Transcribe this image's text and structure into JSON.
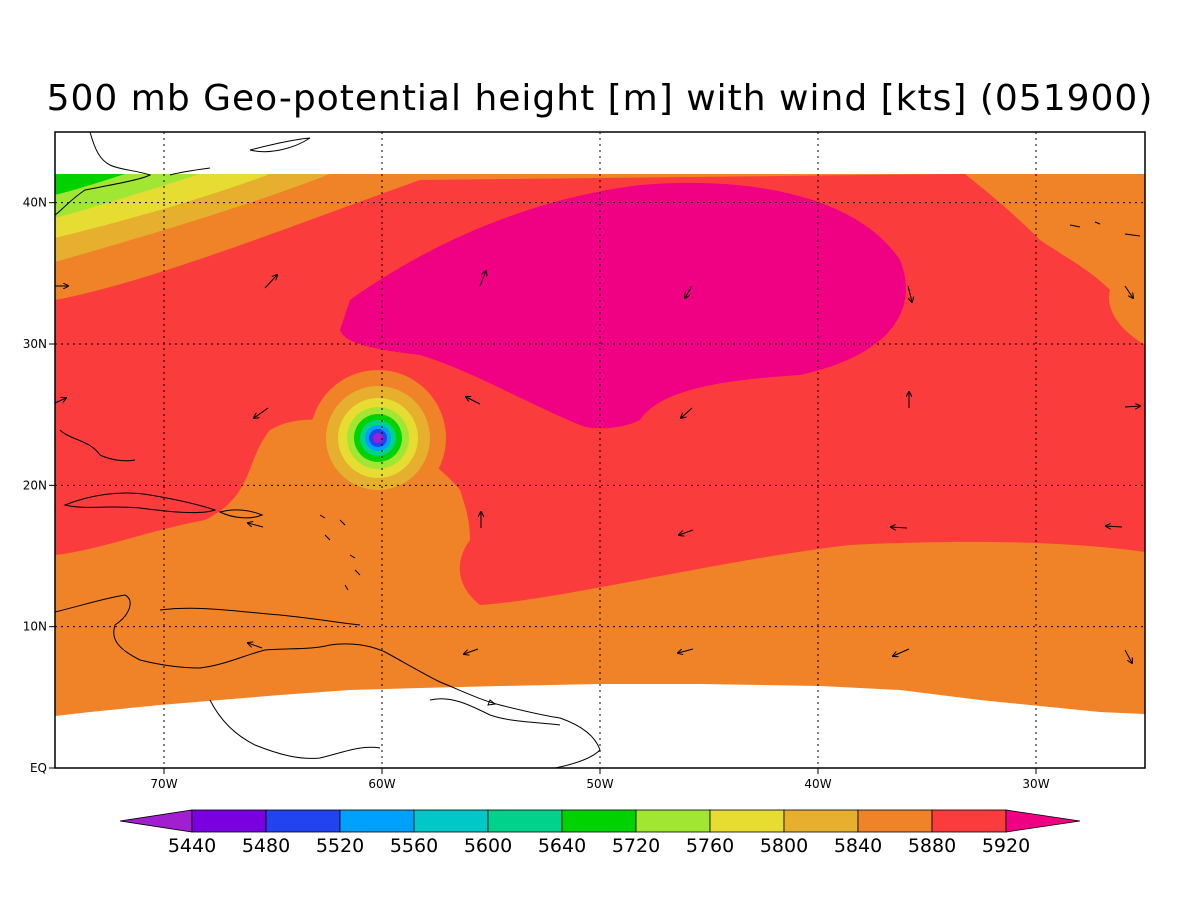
{
  "title": "500 mb Geo-potential height [m] with wind [kts] (051900)",
  "map": {
    "lon_range": [
      -75,
      -25
    ],
    "lat_range": [
      0,
      45
    ],
    "lon_ticks": [
      {
        "value": -70,
        "label": "70W"
      },
      {
        "value": -60,
        "label": "60W"
      },
      {
        "value": -50,
        "label": "50W"
      },
      {
        "value": -40,
        "label": "40W"
      },
      {
        "value": -30,
        "label": "30W"
      }
    ],
    "lat_ticks": [
      {
        "value": 0,
        "label": "EQ"
      },
      {
        "value": 10,
        "label": "10N"
      },
      {
        "value": 20,
        "label": "20N"
      },
      {
        "value": 30,
        "label": "30N"
      },
      {
        "value": 40,
        "label": "40N"
      }
    ],
    "grid": true
  },
  "colorbar": {
    "levels": [
      "5440",
      "5480",
      "5520",
      "5560",
      "5600",
      "5640",
      "5720",
      "5760",
      "5800",
      "5840",
      "5880",
      "5920"
    ],
    "colors": [
      "#a020d0",
      "#7a00e0",
      "#2244ee",
      "#00a0ff",
      "#00c8c8",
      "#00d28c",
      "#00d200",
      "#a0e632",
      "#e6dc32",
      "#e6af2d",
      "#f08228",
      "#fa3c3c",
      "#f00082"
    ]
  }
}
